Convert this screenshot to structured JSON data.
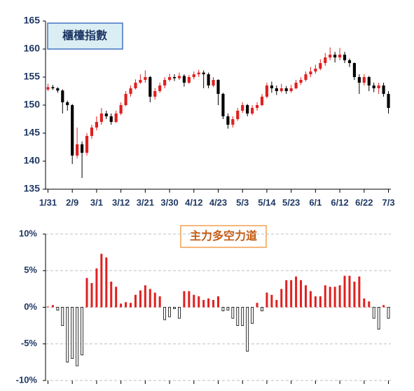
{
  "chart_data": [
    {
      "type": "candlestick",
      "title": "櫃檯指數",
      "categories": [
        "1/31",
        null,
        null,
        null,
        null,
        "2/9",
        null,
        null,
        null,
        null,
        "3/1",
        null,
        null,
        null,
        null,
        "3/12",
        null,
        null,
        null,
        null,
        "3/21",
        null,
        null,
        null,
        null,
        "3/30",
        null,
        null,
        null,
        null,
        "4/12",
        null,
        null,
        null,
        null,
        "4/23",
        null,
        null,
        null,
        null,
        "5/3",
        null,
        null,
        null,
        null,
        "5/14",
        null,
        null,
        null,
        null,
        "5/23",
        null,
        null,
        null,
        null,
        "6/1",
        null,
        null,
        null,
        null,
        "6/12",
        null,
        null,
        null,
        null,
        "6/22",
        null,
        null,
        null,
        null,
        "7/3"
      ],
      "open": [
        152.8,
        153.2,
        153.0,
        152.6,
        150.5,
        150.0,
        141.0,
        143.0,
        141.5,
        144.5,
        146.0,
        147.0,
        148.5,
        148.0,
        147.0,
        148.5,
        150.0,
        152.0,
        153.0,
        154.0,
        154.5,
        155.0,
        151.5,
        152.5,
        153.5,
        154.5,
        155.0,
        154.8,
        155.2,
        154.0,
        155.0,
        155.5,
        155.8,
        155.5,
        153.5,
        154.5,
        152.0,
        148.0,
        146.5,
        147.5,
        149.0,
        150.0,
        148.5,
        149.5,
        150.0,
        151.5,
        153.5,
        153.0,
        152.5,
        153.0,
        152.5,
        153.0,
        154.0,
        154.5,
        155.5,
        156.0,
        156.5,
        157.5,
        158.5,
        159.0,
        158.5,
        159.0,
        158.0,
        157.5,
        155.0,
        154.0,
        155.0,
        153.5,
        153.0,
        153.5,
        152.0
      ],
      "high": [
        153.8,
        153.6,
        153.2,
        152.8,
        150.8,
        150.2,
        146.0,
        143.5,
        145.0,
        146.5,
        148.0,
        149.5,
        149.0,
        148.5,
        149.0,
        150.5,
        152.5,
        153.5,
        154.6,
        155.5,
        156.2,
        155.2,
        153.0,
        154.0,
        155.0,
        155.6,
        155.5,
        155.8,
        155.5,
        155.4,
        156.0,
        156.3,
        156.2,
        155.8,
        155.0,
        154.6,
        152.2,
        148.5,
        148.0,
        149.5,
        150.5,
        150.2,
        150.0,
        150.5,
        152.0,
        154.0,
        154.2,
        153.5,
        153.8,
        153.4,
        153.6,
        154.5,
        155.0,
        156.0,
        156.8,
        157.2,
        158.2,
        159.3,
        160.3,
        159.5,
        160.2,
        159.5,
        158.3,
        157.6,
        155.5,
        155.5,
        155.2,
        154.0,
        154.0,
        154.0,
        152.5
      ],
      "low": [
        152.5,
        152.7,
        152.2,
        148.5,
        149.0,
        139.5,
        140.5,
        137.0,
        141.0,
        144.0,
        145.5,
        146.5,
        147.5,
        146.5,
        146.8,
        148.2,
        149.8,
        151.5,
        152.8,
        153.8,
        154.0,
        150.5,
        151.0,
        152.2,
        153.0,
        154.2,
        154.3,
        154.5,
        153.3,
        153.8,
        154.6,
        155.0,
        153.0,
        153.0,
        153.2,
        150.0,
        147.5,
        145.8,
        146.0,
        147.2,
        148.6,
        148.0,
        148.2,
        149.0,
        149.8,
        151.2,
        152.2,
        151.8,
        152.2,
        152.0,
        152.2,
        152.8,
        153.6,
        154.2,
        155.0,
        155.6,
        156.2,
        157.0,
        158.0,
        157.6,
        158.0,
        157.5,
        156.8,
        154.5,
        152.0,
        153.5,
        152.5,
        152.3,
        152.0,
        151.5,
        148.5
      ],
      "close": [
        153.2,
        153.0,
        152.6,
        150.5,
        150.0,
        141.0,
        143.0,
        141.5,
        144.5,
        146.0,
        147.0,
        148.5,
        148.0,
        147.0,
        148.5,
        150.0,
        152.0,
        153.0,
        154.0,
        154.5,
        155.0,
        151.5,
        152.5,
        153.5,
        154.5,
        155.0,
        154.8,
        155.2,
        154.0,
        155.0,
        155.5,
        155.8,
        155.5,
        153.5,
        154.5,
        152.0,
        148.0,
        146.5,
        147.5,
        149.0,
        150.0,
        148.5,
        149.5,
        150.0,
        151.5,
        153.5,
        153.0,
        152.5,
        153.0,
        152.5,
        153.0,
        154.0,
        154.5,
        155.5,
        156.0,
        156.5,
        157.5,
        158.5,
        159.0,
        158.5,
        159.0,
        158.0,
        157.5,
        155.0,
        154.0,
        155.0,
        153.5,
        153.0,
        153.5,
        152.0,
        149.5
      ],
      "up_color": "#e02020",
      "down_color": "#000000",
      "ylim": [
        135,
        165
      ],
      "yticks": [
        135,
        140,
        145,
        150,
        155,
        160,
        165
      ]
    },
    {
      "type": "bar",
      "title": "主力多空力道",
      "values": [
        0.1,
        0.3,
        -0.4,
        -2.5,
        -7.5,
        -7,
        -8,
        -6.5,
        4,
        3.3,
        5.3,
        7.3,
        6.8,
        3.5,
        2.8,
        0.5,
        0.7,
        0.6,
        1.7,
        2.3,
        3,
        2.5,
        2,
        1.5,
        -1.7,
        -1.3,
        -0.2,
        -1.5,
        2.2,
        2.2,
        1.7,
        1.5,
        1,
        1.2,
        1,
        1.5,
        -0.5,
        -0.4,
        -1.5,
        -2.5,
        -2.5,
        -6,
        -2.2,
        0.6,
        -0.5,
        2,
        1.7,
        1,
        2.5,
        3.7,
        3.7,
        4.2,
        3.7,
        3,
        2.2,
        1.5,
        1.5,
        3,
        2.8,
        2.8,
        3,
        4.3,
        4.3,
        3.5,
        4.2,
        1.2,
        0.8,
        -1.5,
        -3,
        0.3,
        -1.5
      ],
      "up_color": "#e02020",
      "down_color": "#000000",
      "ylim": [
        -10,
        10
      ],
      "yticks": [
        {
          "value": -10,
          "label": "-10%"
        },
        {
          "value": -5,
          "label": "-5%"
        },
        {
          "value": 0,
          "label": "0%"
        },
        {
          "value": 5,
          "label": "5%"
        },
        {
          "value": 10,
          "label": "10%"
        }
      ],
      "grid": true
    }
  ]
}
